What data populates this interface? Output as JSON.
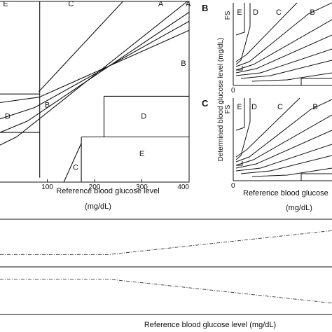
{
  "chart_data": [
    {
      "id": "panel-a",
      "type": "error-grid",
      "xlabel": "Reference blood glucose level",
      "unit": "(mg/dL)",
      "xlim": [
        0,
        400
      ],
      "ylim": [
        0,
        400
      ],
      "xticks": [
        100,
        200,
        300,
        400
      ],
      "xtick_labels": [
        "100",
        "200",
        "300",
        "400"
      ],
      "zones": [
        {
          "label": "A",
          "at": [
            340,
            394
          ]
        },
        {
          "label": "A",
          "at": [
            398,
            394
          ]
        },
        {
          "label": "B",
          "at": [
            388,
            262
          ]
        },
        {
          "label": "B",
          "at": [
            100,
            170
          ]
        },
        {
          "label": "C",
          "at": [
            150,
            394
          ]
        },
        {
          "label": "C",
          "at": [
            160,
            32
          ]
        },
        {
          "label": "D",
          "at": [
            304,
            145
          ]
        },
        {
          "label": "D",
          "at": [
            16,
            145
          ]
        },
        {
          "label": "E",
          "at": [
            300,
            62
          ]
        },
        {
          "label": "E",
          "at": [
            12,
            394
          ]
        }
      ],
      "boundaries": [
        [
          [
            0,
            82
          ],
          [
            35,
            100
          ],
          [
            396,
            400
          ]
        ],
        [
          [
            0,
            110
          ],
          [
            58,
            135
          ],
          [
            400,
            376
          ]
        ],
        [
          [
            0,
            140
          ],
          [
            73,
            165
          ],
          [
            400,
            356
          ]
        ],
        [
          [
            0,
            176
          ],
          [
            83,
            188
          ],
          [
            400,
            336
          ]
        ],
        [
          [
            82,
            200
          ],
          [
            260,
            400
          ]
        ],
        [
          [
            0,
            195
          ],
          [
            84,
            195
          ]
        ],
        [
          [
            0,
            110
          ],
          [
            84,
            110
          ]
        ],
        [
          [
            84,
            10
          ],
          [
            84,
            400
          ]
        ],
        [
          [
            135,
            0
          ],
          [
            172,
            86
          ]
        ],
        [
          [
            172,
            0
          ],
          [
            172,
            100
          ]
        ],
        [
          [
            172,
            100
          ],
          [
            400,
            100
          ]
        ],
        [
          [
            220,
            100
          ],
          [
            220,
            190
          ]
        ],
        [
          [
            220,
            190
          ],
          [
            400,
            190
          ]
        ]
      ]
    },
    {
      "id": "panel-b",
      "type": "error-grid",
      "panel_label": "B",
      "ylabel": "FS",
      "origin_label": "0",
      "zones": [
        "E",
        "D",
        "C",
        "B"
      ]
    },
    {
      "id": "panel-c",
      "type": "error-grid",
      "panel_label": "C",
      "ylabel": "FS",
      "origin_label": "0",
      "zones": [
        "E",
        "D",
        "C",
        "B"
      ]
    },
    {
      "id": "panel-bc-shared",
      "ylabel": "Determined blood glucose level (mg/dL)",
      "xlabel": "Reference blood glucose",
      "unit": "(mg/dL)"
    },
    {
      "id": "panel-d",
      "type": "line",
      "xlabel": "Reference blood glucose level (mg/dL)",
      "series": [
        {
          "style": "dash-dot",
          "values": [
            [
              0,
              0.74
            ],
            [
              0.33,
              0.74
            ],
            [
              1.0,
              0.24
            ]
          ]
        },
        {
          "style": "dash-dot",
          "values": [
            [
              0,
              1.26
            ],
            [
              0.33,
              1.26
            ],
            [
              1.0,
              1.76
            ]
          ]
        }
      ],
      "reference_line": 1.0
    }
  ]
}
